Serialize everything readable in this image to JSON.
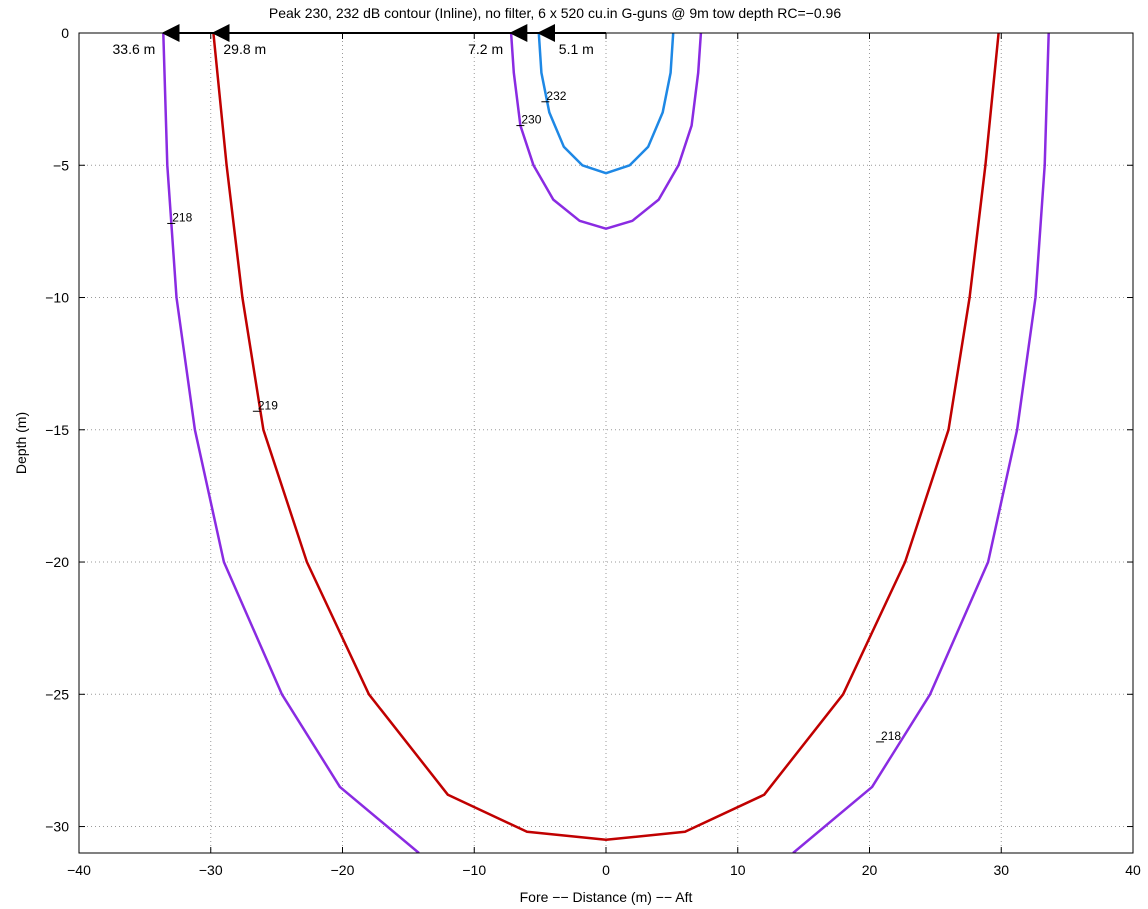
{
  "chart_data": {
    "type": "line",
    "title": "Peak 230, 232 dB contour (Inline), no filter, 6 x 520 cu.in G-guns @ 9m  tow depth RC=−0.96",
    "xlabel": "Fore −− Distance (m) −− Aft",
    "ylabel": "Depth (m)",
    "xlim": [
      -40,
      40
    ],
    "ylim": [
      -31,
      0
    ],
    "xticks": [
      -40,
      -30,
      -20,
      -10,
      0,
      10,
      20,
      30,
      40
    ],
    "xtick_labels": [
      "−40",
      "−30",
      "−20",
      "−10",
      "0",
      "10",
      "20",
      "30",
      "40"
    ],
    "yticks": [
      0,
      -5,
      -10,
      -15,
      -20,
      -25,
      -30
    ],
    "ytick_labels": [
      "0",
      "−5",
      "−10",
      "−15",
      "−20",
      "−25",
      "−30"
    ],
    "grid": true,
    "series": [
      {
        "name": "218",
        "color": "#8a2be2",
        "points": [
          [
            -33.6,
            0
          ],
          [
            -33.3,
            -5
          ],
          [
            -32.6,
            -10
          ],
          [
            -31.2,
            -15
          ],
          [
            -29.0,
            -20
          ],
          [
            -24.6,
            -25
          ],
          [
            -20.2,
            -28.5
          ],
          [
            -14.2,
            -31.0
          ],
          [
            null,
            null
          ],
          [
            14.2,
            -31.0
          ],
          [
            20.2,
            -28.5
          ],
          [
            24.6,
            -25
          ],
          [
            29.0,
            -20
          ],
          [
            31.2,
            -15
          ],
          [
            32.6,
            -10
          ],
          [
            33.3,
            -5
          ],
          [
            33.6,
            0
          ]
        ]
      },
      {
        "name": "219",
        "color": "#c00000",
        "points": [
          [
            -29.8,
            0
          ],
          [
            -28.8,
            -5
          ],
          [
            -27.6,
            -10
          ],
          [
            -26.0,
            -15
          ],
          [
            -22.7,
            -20
          ],
          [
            -18.0,
            -25
          ],
          [
            -12.0,
            -28.8
          ],
          [
            -6.0,
            -30.2
          ],
          [
            0,
            -30.5
          ],
          [
            6.0,
            -30.2
          ],
          [
            12.0,
            -28.8
          ],
          [
            18.0,
            -25
          ],
          [
            22.7,
            -20
          ],
          [
            26.0,
            -15
          ],
          [
            27.6,
            -10
          ],
          [
            28.8,
            -5
          ],
          [
            29.8,
            0
          ]
        ]
      },
      {
        "name": "230",
        "color": "#8a2be2",
        "points": [
          [
            -7.2,
            0
          ],
          [
            -7.0,
            -1.5
          ],
          [
            -6.5,
            -3.5
          ],
          [
            -5.5,
            -5.0
          ],
          [
            -4.0,
            -6.3
          ],
          [
            -2.0,
            -7.1
          ],
          [
            0,
            -7.4
          ],
          [
            2.0,
            -7.1
          ],
          [
            4.0,
            -6.3
          ],
          [
            5.5,
            -5.0
          ],
          [
            6.5,
            -3.5
          ],
          [
            7.0,
            -1.5
          ],
          [
            7.2,
            0
          ]
        ]
      },
      {
        "name": "232",
        "color": "#1e88e5",
        "points": [
          [
            -5.1,
            0
          ],
          [
            -4.9,
            -1.5
          ],
          [
            -4.3,
            -3.0
          ],
          [
            -3.2,
            -4.3
          ],
          [
            -1.8,
            -5.0
          ],
          [
            0,
            -5.3
          ],
          [
            1.8,
            -5.0
          ],
          [
            3.2,
            -4.3
          ],
          [
            4.3,
            -3.0
          ],
          [
            4.9,
            -1.5
          ],
          [
            5.1,
            0
          ]
        ]
      }
    ],
    "contour_labels": [
      {
        "text": "218",
        "x": -33.0,
        "y": -7.2
      },
      {
        "text": "219",
        "x": -26.5,
        "y": -14.3
      },
      {
        "text": "230",
        "x": -6.5,
        "y": -3.5
      },
      {
        "text": "232",
        "x": -4.6,
        "y": -2.6
      },
      {
        "text": "218",
        "x": 20.8,
        "y": -26.8
      }
    ],
    "annotations": [
      {
        "text": "33.6 m",
        "x_from": 0,
        "x_to": -33.6
      },
      {
        "text": "29.8 m",
        "x_from": 0,
        "x_to": -29.8
      },
      {
        "text": "7.2 m",
        "x_from": 0,
        "x_to": -7.2
      },
      {
        "text": "5.1 m",
        "x_from": 0,
        "x_to": -5.1
      }
    ]
  }
}
